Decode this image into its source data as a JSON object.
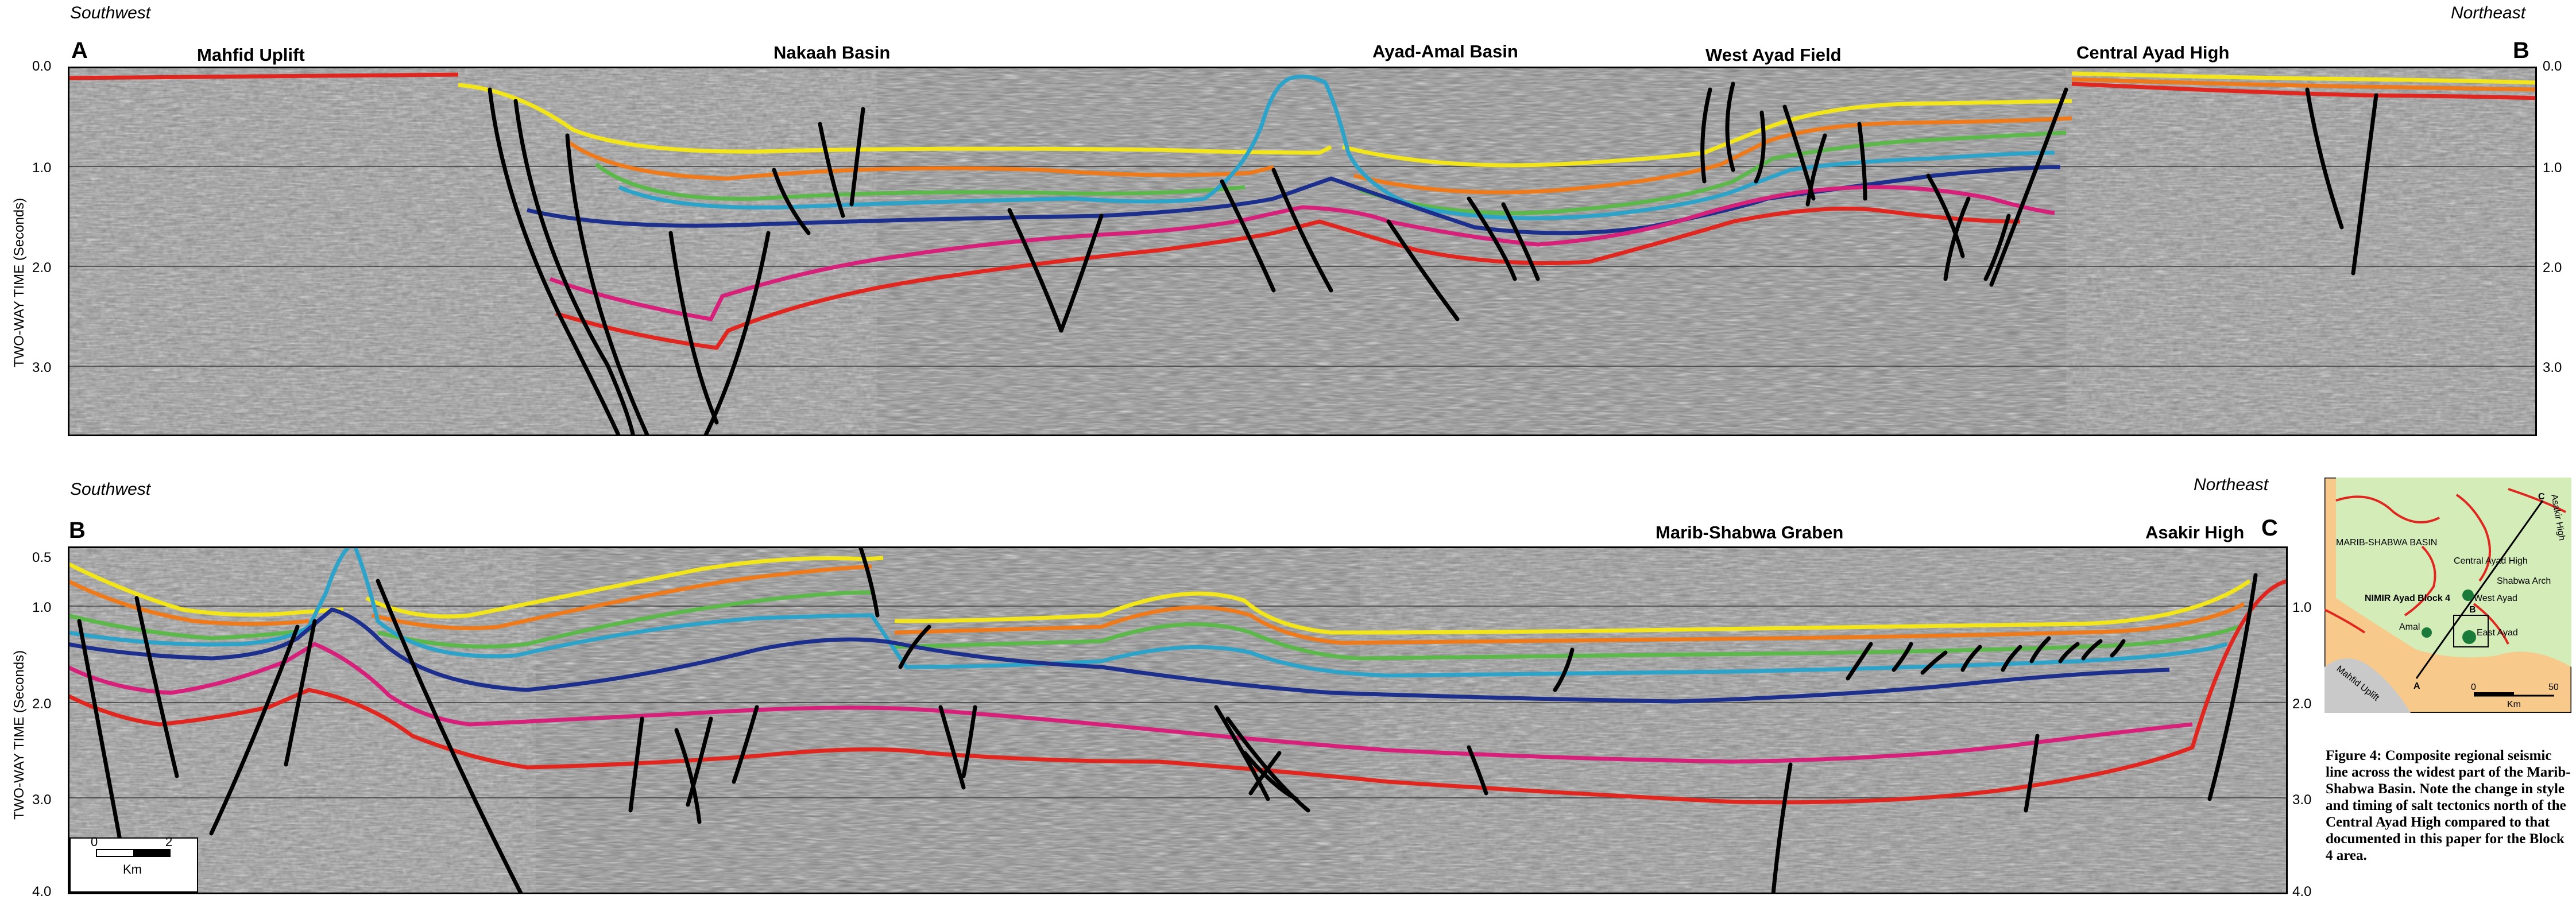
{
  "section_ab": {
    "direction_left": "Southwest",
    "direction_right": "Northeast",
    "corner_left": "A",
    "corner_right": "B",
    "features": [
      {
        "name": "Mahfid Uplift"
      },
      {
        "name": "Nakaah Basin"
      },
      {
        "name": "Ayad-Amal Basin"
      },
      {
        "name": "West Ayad Field"
      },
      {
        "name": "Central Ayad High"
      }
    ],
    "axis_title": "TWO-WAY TIME (Seconds)",
    "ticks": [
      "0.0",
      "1.0",
      "2.0",
      "3.0"
    ]
  },
  "section_bc": {
    "direction_left": "Southwest",
    "direction_right": "Northeast",
    "corner_left": "B",
    "corner_right": "C",
    "features": [
      {
        "name": "Marib-Shabwa Graben"
      },
      {
        "name": "Asakir High"
      }
    ],
    "axis_title": "TWO-WAY TIME (Seconds)",
    "ticks": [
      "0.5",
      "1.0",
      "2.0",
      "3.0",
      "4.0"
    ],
    "scale": {
      "min": "0",
      "max": "2",
      "unit": "Km"
    }
  },
  "inset_map": {
    "basin": "MARIB-SHABWA BASIN",
    "labels": [
      "Central Ayad High",
      "Shabwa Arch",
      "West Ayad",
      "East Ayad",
      "Amal",
      "NIMIR Ayad Block 4",
      "Mahfid Uplift",
      "Asakir High"
    ],
    "points": [
      "A",
      "B",
      "C"
    ],
    "scale": {
      "min": "0",
      "max": "50",
      "unit": "Km"
    }
  },
  "caption": "Figure 4: Composite regional seismic line across the widest part of the Marib-Shabwa Basin. Note the change in style and timing of salt tectonics north of the Central Ayad High compared to that documented in this paper for the Block 4 area.",
  "colors": {
    "yellow": "#f2e61a",
    "orange": "#ee7a1c",
    "green": "#5cb84a",
    "cyan": "#2ea3c9",
    "navy": "#1d2f8c",
    "magenta": "#d6207a",
    "red": "#e0261e",
    "fault": "#000000",
    "map_land": "#f7c98a",
    "map_basin": "#d4ecb8"
  }
}
